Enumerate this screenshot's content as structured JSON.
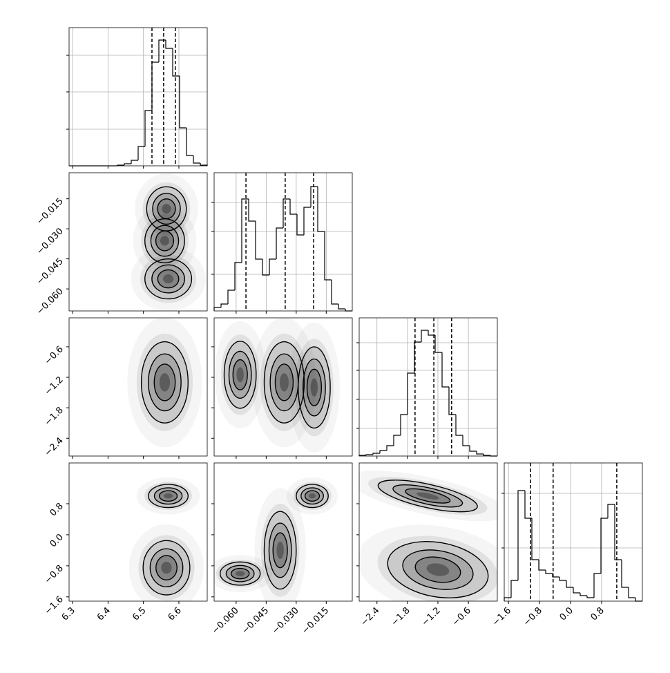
{
  "chart_data": {
    "type": "corner",
    "params": [
      {
        "lim": [
          6.29,
          6.68
        ],
        "ticks": [
          6.3,
          6.4,
          6.5,
          6.6
        ]
      },
      {
        "lim": [
          -0.071,
          -0.002
        ],
        "ticks": [
          {
            "value": -0.06,
            "label": "−0.060"
          },
          {
            "value": -0.045,
            "label": "−0.045"
          },
          {
            "value": -0.03,
            "label": "−0.030"
          },
          {
            "value": -0.015,
            "label": "−0.015"
          }
        ]
      },
      {
        "lim": [
          -2.75,
          -0.03
        ],
        "ticks": [
          {
            "value": -2.4,
            "label": "−2.4"
          },
          {
            "value": -1.8,
            "label": "−1.8"
          },
          {
            "value": -1.2,
            "label": "−1.2"
          },
          {
            "value": -0.6,
            "label": "−0.6"
          }
        ]
      },
      {
        "lim": [
          -1.71,
          1.85
        ],
        "ticks": [
          {
            "value": -1.6,
            "label": "−1.6"
          },
          {
            "value": -0.8,
            "label": "−0.8"
          },
          {
            "value": 0,
            "label": "0.0"
          },
          0.8
        ]
      }
    ],
    "histograms": [
      {
        "counts": [
          0,
          0,
          0,
          0,
          0,
          0,
          0,
          1,
          3,
          8,
          28,
          80,
          150,
          182,
          170,
          130,
          55,
          15,
          4,
          1
        ],
        "ylim": [
          0,
          200
        ],
        "yticks": [
          53,
          107,
          160
        ],
        "quantiles": [
          6.524,
          6.557,
          6.59
        ]
      },
      {
        "counts": [
          5,
          10,
          30,
          70,
          162,
          130,
          75,
          52,
          75,
          120,
          162,
          140,
          110,
          150,
          180,
          115,
          45,
          10,
          3,
          0
        ],
        "ylim": [
          0,
          200
        ],
        "yticks": [
          53,
          115,
          157
        ],
        "quantiles": [
          -0.0551,
          -0.0355,
          -0.0213
        ]
      },
      {
        "counts": [
          1,
          2,
          4,
          8,
          15,
          30,
          60,
          120,
          165,
          182,
          175,
          150,
          100,
          60,
          30,
          15,
          7,
          3,
          1,
          0
        ],
        "ylim": [
          0,
          200
        ],
        "yticks": [
          40,
          82,
          124,
          164
        ],
        "quantiles": [
          -1.65,
          -1.28,
          -0.93
        ]
      },
      {
        "counts": [
          5,
          30,
          160,
          120,
          60,
          45,
          40,
          35,
          30,
          20,
          12,
          8,
          5,
          40,
          120,
          140,
          60,
          20,
          5,
          0
        ],
        "ylim": [
          0,
          200
        ],
        "yticks": [
          77,
          156
        ],
        "quantiles": [
          -1.03,
          -0.45,
          1.19
        ]
      }
    ],
    "density": [
      [
        [
          {
            "x": 6.565,
            "y": -0.02,
            "sx": 0.028,
            "sy": 0.0055,
            "rho": 0
          },
          {
            "x": 6.56,
            "y": -0.036,
            "sx": 0.028,
            "sy": 0.0055,
            "rho": 0
          },
          {
            "x": 6.57,
            "y": -0.055,
            "sx": 0.033,
            "sy": 0.005,
            "rho": 0
          }
        ]
      ],
      [
        [
          {
            "x": 6.56,
            "y": -1.3,
            "sx": 0.033,
            "sy": 0.4,
            "rho": 0
          }
        ],
        [
          {
            "x": -0.058,
            "y": -1.15,
            "sx": 0.004,
            "sy": 0.33,
            "rho": 0
          },
          {
            "x": -0.036,
            "y": -1.3,
            "sx": 0.005,
            "sy": 0.4,
            "rho": 0
          },
          {
            "x": -0.021,
            "y": -1.4,
            "sx": 0.004,
            "sy": 0.4,
            "rho": 0
          }
        ]
      ],
      [
        [
          {
            "x": 6.57,
            "y": 1.0,
            "sx": 0.028,
            "sy": 0.15,
            "rho": 0
          },
          {
            "x": 6.565,
            "y": -0.85,
            "sx": 0.033,
            "sy": 0.35,
            "rho": 0
          }
        ],
        [
          {
            "x": -0.022,
            "y": 1.0,
            "sx": 0.004,
            "sy": 0.15,
            "rho": 0
          },
          {
            "x": -0.038,
            "y": -0.4,
            "sx": 0.004,
            "sy": 0.5,
            "rho": 0
          },
          {
            "x": -0.058,
            "y": -1.0,
            "sx": 0.005,
            "sy": 0.15,
            "rho": 0
          }
        ],
        [
          {
            "x": -1.4,
            "y": 1.0,
            "sx": 0.5,
            "sy": 0.15,
            "rho": -0.5
          },
          {
            "x": -1.2,
            "y": -0.9,
            "sx": 0.5,
            "sy": 0.35,
            "rho": -0.4
          }
        ]
      ]
    ]
  }
}
